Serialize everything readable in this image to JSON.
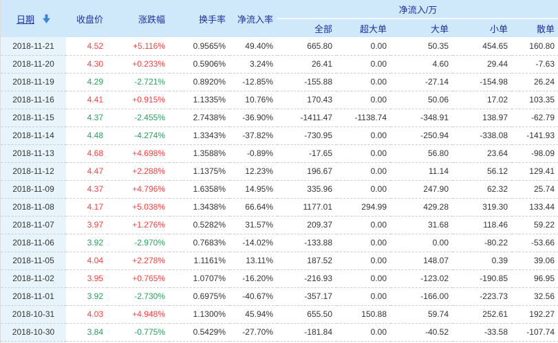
{
  "colors": {
    "header_bg": "#cfe9fa",
    "header_text": "#1e2fa0",
    "date_col_bg": "#e8f4fc",
    "body_text": "#333333",
    "up_red": "#fd4140",
    "down_green": "#28a05c",
    "arrow_blue": "#3c85d8",
    "row_divider": "#cccccc",
    "edge": "#dcdcdc"
  },
  "table": {
    "sort": {
      "column": "日期",
      "direction": "descending",
      "icon": "arrow-down-icon"
    },
    "headers": {
      "date": "日期",
      "close": "收盘价",
      "change": "涨跌幅",
      "turnover": "换手率",
      "inflow_rate": "净流入率",
      "group": "净流入/万",
      "sub": [
        "全部",
        "超大单",
        "大单",
        "小单",
        "散单"
      ]
    },
    "rows": [
      {
        "date": "2018-11-21",
        "close": "4.52",
        "change": "+5.116%",
        "dir": "up",
        "turnover": "0.9565%",
        "inflow_rate": "49.40%",
        "flows": {
          "all": "665.80",
          "xlarge": "0.00",
          "large": "50.35",
          "small": "454.65",
          "retail": "160.80"
        }
      },
      {
        "date": "2018-11-20",
        "close": "4.30",
        "change": "+0.233%",
        "dir": "up",
        "turnover": "0.5906%",
        "inflow_rate": "3.24%",
        "flows": {
          "all": "26.41",
          "xlarge": "0.00",
          "large": "4.60",
          "small": "29.44",
          "retail": "-7.63"
        }
      },
      {
        "date": "2018-11-19",
        "close": "4.29",
        "change": "-2.721%",
        "dir": "down",
        "turnover": "0.8920%",
        "inflow_rate": "-12.85%",
        "flows": {
          "all": "-155.88",
          "xlarge": "0.00",
          "large": "-27.14",
          "small": "-154.98",
          "retail": "26.24"
        }
      },
      {
        "date": "2018-11-16",
        "close": "4.41",
        "change": "+0.915%",
        "dir": "up",
        "turnover": "1.1335%",
        "inflow_rate": "10.76%",
        "flows": {
          "all": "170.43",
          "xlarge": "0.00",
          "large": "50.06",
          "small": "17.02",
          "retail": "103.35"
        }
      },
      {
        "date": "2018-11-15",
        "close": "4.37",
        "change": "-2.455%",
        "dir": "down",
        "turnover": "2.7438%",
        "inflow_rate": "-36.90%",
        "flows": {
          "all": "-1411.47",
          "xlarge": "-1138.74",
          "large": "-348.91",
          "small": "138.97",
          "retail": "-62.79"
        }
      },
      {
        "date": "2018-11-14",
        "close": "4.48",
        "change": "-4.274%",
        "dir": "down",
        "turnover": "1.3343%",
        "inflow_rate": "-37.82%",
        "flows": {
          "all": "-730.95",
          "xlarge": "0.00",
          "large": "-250.94",
          "small": "-338.08",
          "retail": "-141.93"
        }
      },
      {
        "date": "2018-11-13",
        "close": "4.68",
        "change": "+4.698%",
        "dir": "up",
        "turnover": "1.3588%",
        "inflow_rate": "-0.89%",
        "flows": {
          "all": "-17.65",
          "xlarge": "0.00",
          "large": "56.80",
          "small": "23.64",
          "retail": "-98.09"
        }
      },
      {
        "date": "2018-11-12",
        "close": "4.47",
        "change": "+2.288%",
        "dir": "up",
        "turnover": "1.1375%",
        "inflow_rate": "12.23%",
        "flows": {
          "all": "196.67",
          "xlarge": "0.00",
          "large": "11.14",
          "small": "56.12",
          "retail": "129.41"
        }
      },
      {
        "date": "2018-11-09",
        "close": "4.37",
        "change": "+4.796%",
        "dir": "up",
        "turnover": "1.6358%",
        "inflow_rate": "14.95%",
        "flows": {
          "all": "335.96",
          "xlarge": "0.00",
          "large": "247.90",
          "small": "62.32",
          "retail": "25.74"
        }
      },
      {
        "date": "2018-11-08",
        "close": "4.17",
        "change": "+5.038%",
        "dir": "up",
        "turnover": "1.3438%",
        "inflow_rate": "66.64%",
        "flows": {
          "all": "1177.01",
          "xlarge": "294.99",
          "large": "429.28",
          "small": "319.30",
          "retail": "133.44"
        }
      },
      {
        "date": "2018-11-07",
        "close": "3.97",
        "change": "+1.276%",
        "dir": "up",
        "turnover": "0.5282%",
        "inflow_rate": "31.57%",
        "flows": {
          "all": "209.37",
          "xlarge": "0.00",
          "large": "31.68",
          "small": "118.46",
          "retail": "59.22"
        }
      },
      {
        "date": "2018-11-06",
        "close": "3.92",
        "change": "-2.970%",
        "dir": "down",
        "turnover": "0.7683%",
        "inflow_rate": "-14.02%",
        "flows": {
          "all": "-133.88",
          "xlarge": "0.00",
          "large": "0.00",
          "small": "-80.22",
          "retail": "-53.66"
        }
      },
      {
        "date": "2018-11-05",
        "close": "4.04",
        "change": "+2.278%",
        "dir": "up",
        "turnover": "1.1161%",
        "inflow_rate": "13.11%",
        "flows": {
          "all": "187.52",
          "xlarge": "0.00",
          "large": "148.07",
          "small": "0.39",
          "retail": "39.06"
        }
      },
      {
        "date": "2018-11-02",
        "close": "3.95",
        "change": "+0.765%",
        "dir": "up",
        "turnover": "1.0707%",
        "inflow_rate": "-16.20%",
        "flows": {
          "all": "-216.93",
          "xlarge": "0.00",
          "large": "-123.02",
          "small": "-190.85",
          "retail": "96.95"
        }
      },
      {
        "date": "2018-11-01",
        "close": "3.92",
        "change": "-2.730%",
        "dir": "down",
        "turnover": "0.6975%",
        "inflow_rate": "-40.67%",
        "flows": {
          "all": "-357.17",
          "xlarge": "0.00",
          "large": "-166.00",
          "small": "-223.73",
          "retail": "32.56"
        }
      },
      {
        "date": "2018-10-31",
        "close": "4.03",
        "change": "+4.948%",
        "dir": "up",
        "turnover": "1.1300%",
        "inflow_rate": "45.94%",
        "flows": {
          "all": "655.50",
          "xlarge": "150.88",
          "large": "59.74",
          "small": "252.61",
          "retail": "192.27"
        }
      },
      {
        "date": "2018-10-30",
        "close": "3.84",
        "change": "-0.775%",
        "dir": "down",
        "turnover": "0.5429%",
        "inflow_rate": "-27.70%",
        "flows": {
          "all": "-181.84",
          "xlarge": "0.00",
          "large": "-40.52",
          "small": "-33.58",
          "retail": "-107.74"
        }
      }
    ]
  }
}
